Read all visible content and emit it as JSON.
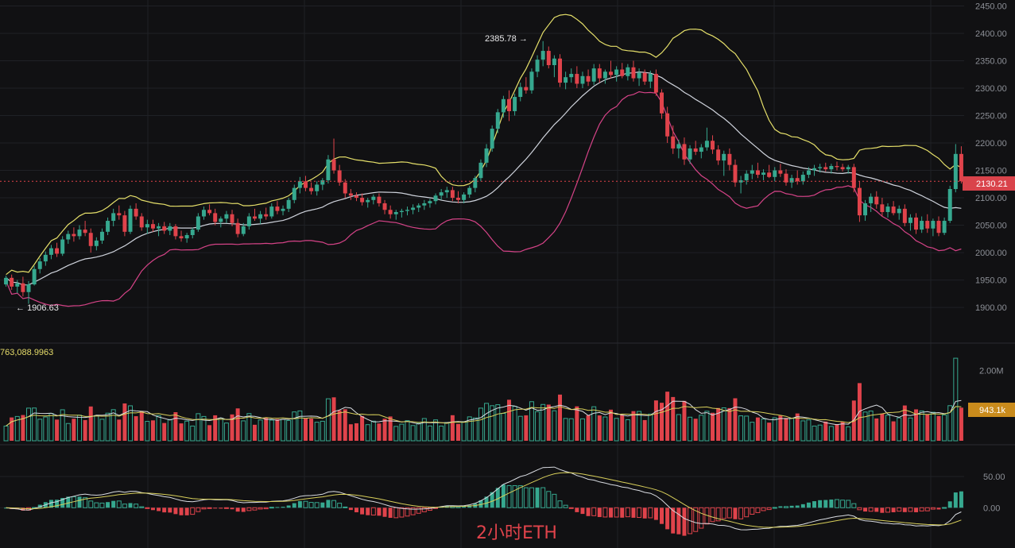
{
  "chart_data": {
    "type": "candlestick",
    "panels": {
      "price": {
        "y_ticks": [
          "2450.00",
          "2400.00",
          "2350.00",
          "2300.00",
          "2250.00",
          "2200.00",
          "2150.00",
          "2100.00",
          "2050.00",
          "2000.00",
          "1950.00",
          "1900.00"
        ],
        "ylim": [
          1890,
          2455
        ],
        "high_label": "2385.78",
        "low_label": "1906.63",
        "high_value": 2385.78,
        "low_value": 1906.63,
        "current_price": "2130.21",
        "candles_ohlc": [
          [
            1942,
            1958,
            1938,
            1954
          ],
          [
            1954,
            1960,
            1932,
            1938
          ],
          [
            1938,
            1950,
            1926,
            1944
          ],
          [
            1944,
            1956,
            1920,
            1928
          ],
          [
            1928,
            1948,
            1906.63,
            1942
          ],
          [
            1942,
            1976,
            1940,
            1970
          ],
          [
            1970,
            1990,
            1962,
            1984
          ],
          [
            1984,
            2002,
            1976,
            1996
          ],
          [
            1996,
            2014,
            1988,
            2008
          ],
          [
            2008,
            2018,
            1992,
            1998
          ],
          [
            1998,
            2030,
            1994,
            2024
          ],
          [
            2024,
            2040,
            2016,
            2034
          ],
          [
            2034,
            2046,
            2020,
            2030
          ],
          [
            2030,
            2050,
            2024,
            2042
          ],
          [
            2042,
            2058,
            2030,
            2036
          ],
          [
            2036,
            2044,
            2000,
            2012
          ],
          [
            2012,
            2028,
            2004,
            2022
          ],
          [
            2022,
            2044,
            2016,
            2038
          ],
          [
            2038,
            2064,
            2032,
            2058
          ],
          [
            2058,
            2080,
            2048,
            2072
          ],
          [
            2072,
            2086,
            2060,
            2068
          ],
          [
            2068,
            2076,
            2030,
            2038
          ],
          [
            2038,
            2086,
            2034,
            2080
          ],
          [
            2080,
            2090,
            2060,
            2066
          ],
          [
            2066,
            2072,
            2040,
            2046
          ],
          [
            2046,
            2060,
            2034,
            2052
          ],
          [
            2052,
            2060,
            2038,
            2044
          ],
          [
            2044,
            2054,
            2030,
            2048
          ],
          [
            2048,
            2056,
            2034,
            2040
          ],
          [
            2040,
            2054,
            2032,
            2048
          ],
          [
            2048,
            2052,
            2024,
            2030
          ],
          [
            2030,
            2040,
            2020,
            2026
          ],
          [
            2026,
            2036,
            2018,
            2032
          ],
          [
            2032,
            2046,
            2026,
            2042
          ],
          [
            2042,
            2072,
            2038,
            2066
          ],
          [
            2066,
            2084,
            2060,
            2078
          ],
          [
            2078,
            2088,
            2068,
            2072
          ],
          [
            2072,
            2080,
            2050,
            2056
          ],
          [
            2056,
            2066,
            2046,
            2062
          ],
          [
            2062,
            2076,
            2054,
            2070
          ],
          [
            2070,
            2078,
            2048,
            2054
          ],
          [
            2054,
            2062,
            2028,
            2034
          ],
          [
            2034,
            2054,
            2030,
            2048
          ],
          [
            2048,
            2072,
            2042,
            2066
          ],
          [
            2066,
            2080,
            2058,
            2062
          ],
          [
            2062,
            2076,
            2052,
            2070
          ],
          [
            2070,
            2082,
            2060,
            2066
          ],
          [
            2066,
            2090,
            2062,
            2084
          ],
          [
            2084,
            2094,
            2070,
            2076
          ],
          [
            2076,
            2086,
            2068,
            2080
          ],
          [
            2080,
            2100,
            2074,
            2096
          ],
          [
            2096,
            2124,
            2090,
            2118
          ],
          [
            2118,
            2138,
            2108,
            2130
          ],
          [
            2130,
            2140,
            2112,
            2118
          ],
          [
            2118,
            2128,
            2106,
            2112
          ],
          [
            2112,
            2130,
            2104,
            2124
          ],
          [
            2124,
            2136,
            2114,
            2132
          ],
          [
            2132,
            2178,
            2126,
            2170
          ],
          [
            2170,
            2208,
            2144,
            2150
          ],
          [
            2150,
            2160,
            2122,
            2128
          ],
          [
            2128,
            2134,
            2100,
            2108
          ],
          [
            2108,
            2116,
            2096,
            2104
          ],
          [
            2104,
            2110,
            2094,
            2100
          ],
          [
            2100,
            2108,
            2086,
            2092
          ],
          [
            2092,
            2100,
            2082,
            2096
          ],
          [
            2096,
            2106,
            2088,
            2102
          ],
          [
            2102,
            2108,
            2084,
            2090
          ],
          [
            2090,
            2096,
            2070,
            2078
          ],
          [
            2078,
            2086,
            2062,
            2070
          ],
          [
            2070,
            2078,
            2060,
            2074
          ],
          [
            2074,
            2080,
            2064,
            2076
          ],
          [
            2076,
            2084,
            2068,
            2078
          ],
          [
            2078,
            2088,
            2070,
            2082
          ],
          [
            2082,
            2090,
            2074,
            2086
          ],
          [
            2086,
            2096,
            2078,
            2090
          ],
          [
            2090,
            2098,
            2082,
            2094
          ],
          [
            2094,
            2108,
            2088,
            2104
          ],
          [
            2104,
            2116,
            2096,
            2110
          ],
          [
            2110,
            2120,
            2100,
            2114
          ],
          [
            2114,
            2120,
            2094,
            2100
          ],
          [
            2100,
            2112,
            2090,
            2096
          ],
          [
            2096,
            2110,
            2090,
            2106
          ],
          [
            2106,
            2122,
            2100,
            2118
          ],
          [
            2118,
            2140,
            2110,
            2136
          ],
          [
            2136,
            2170,
            2130,
            2164
          ],
          [
            2164,
            2198,
            2156,
            2190
          ],
          [
            2190,
            2232,
            2184,
            2226
          ],
          [
            2226,
            2262,
            2218,
            2256
          ],
          [
            2256,
            2286,
            2246,
            2280
          ],
          [
            2280,
            2296,
            2240,
            2258
          ],
          [
            2258,
            2290,
            2250,
            2284
          ],
          [
            2284,
            2310,
            2276,
            2302
          ],
          [
            2302,
            2320,
            2290,
            2296
          ],
          [
            2296,
            2336,
            2290,
            2330
          ],
          [
            2330,
            2360,
            2320,
            2352
          ],
          [
            2352,
            2385.78,
            2340,
            2368
          ],
          [
            2368,
            2376,
            2336,
            2342
          ],
          [
            2342,
            2360,
            2320,
            2354
          ],
          [
            2354,
            2362,
            2302,
            2310
          ],
          [
            2310,
            2330,
            2298,
            2320
          ],
          [
            2320,
            2336,
            2310,
            2326
          ],
          [
            2326,
            2340,
            2300,
            2308
          ],
          [
            2308,
            2330,
            2300,
            2322
          ],
          [
            2322,
            2334,
            2304,
            2312
          ],
          [
            2312,
            2344,
            2306,
            2336
          ],
          [
            2336,
            2344,
            2310,
            2318
          ],
          [
            2318,
            2334,
            2308,
            2330
          ],
          [
            2330,
            2350,
            2318,
            2324
          ],
          [
            2324,
            2340,
            2312,
            2334
          ],
          [
            2334,
            2346,
            2318,
            2322
          ],
          [
            2322,
            2344,
            2314,
            2338
          ],
          [
            2338,
            2350,
            2312,
            2318
          ],
          [
            2318,
            2336,
            2304,
            2328
          ],
          [
            2328,
            2334,
            2306,
            2312
          ],
          [
            2312,
            2332,
            2300,
            2326
          ],
          [
            2326,
            2334,
            2286,
            2292
          ],
          [
            2292,
            2298,
            2244,
            2254
          ],
          [
            2254,
            2266,
            2200,
            2212
          ],
          [
            2212,
            2232,
            2180,
            2190
          ],
          [
            2190,
            2206,
            2172,
            2198
          ],
          [
            2198,
            2210,
            2160,
            2170
          ],
          [
            2170,
            2196,
            2162,
            2190
          ],
          [
            2190,
            2204,
            2178,
            2184
          ],
          [
            2184,
            2198,
            2172,
            2192
          ],
          [
            2192,
            2228,
            2186,
            2204
          ],
          [
            2204,
            2214,
            2180,
            2188
          ],
          [
            2188,
            2196,
            2160,
            2168
          ],
          [
            2168,
            2186,
            2140,
            2180
          ],
          [
            2180,
            2190,
            2150,
            2160
          ],
          [
            2160,
            2170,
            2120,
            2128
          ],
          [
            2128,
            2140,
            2108,
            2132
          ],
          [
            2132,
            2150,
            2124,
            2144
          ],
          [
            2144,
            2160,
            2134,
            2150
          ],
          [
            2150,
            2164,
            2136,
            2142
          ],
          [
            2142,
            2152,
            2132,
            2146
          ],
          [
            2146,
            2160,
            2136,
            2138
          ],
          [
            2138,
            2156,
            2130,
            2150
          ],
          [
            2150,
            2162,
            2138,
            2144
          ],
          [
            2144,
            2152,
            2122,
            2128
          ],
          [
            2128,
            2142,
            2118,
            2136
          ],
          [
            2136,
            2150,
            2124,
            2130
          ],
          [
            2130,
            2148,
            2124,
            2142
          ],
          [
            2142,
            2156,
            2136,
            2150
          ],
          [
            2150,
            2160,
            2140,
            2154
          ],
          [
            2154,
            2162,
            2146,
            2156
          ],
          [
            2156,
            2164,
            2148,
            2152
          ],
          [
            2152,
            2162,
            2144,
            2158
          ],
          [
            2158,
            2166,
            2150,
            2156
          ],
          [
            2156,
            2162,
            2148,
            2152
          ],
          [
            2152,
            2160,
            2144,
            2156
          ],
          [
            2156,
            2162,
            2110,
            2118
          ],
          [
            2118,
            2130,
            2056,
            2068
          ],
          [
            2068,
            2096,
            2058,
            2090
          ],
          [
            2090,
            2108,
            2074,
            2102
          ],
          [
            2102,
            2112,
            2080,
            2088
          ],
          [
            2088,
            2100,
            2066,
            2074
          ],
          [
            2074,
            2090,
            2064,
            2084
          ],
          [
            2084,
            2094,
            2068,
            2072
          ],
          [
            2072,
            2086,
            2060,
            2080
          ],
          [
            2080,
            2088,
            2048,
            2054
          ],
          [
            2054,
            2070,
            2040,
            2064
          ],
          [
            2064,
            2072,
            2034,
            2042
          ],
          [
            2042,
            2066,
            2036,
            2058
          ],
          [
            2058,
            2070,
            2036,
            2044
          ],
          [
            2044,
            2062,
            2030,
            2058
          ],
          [
            2058,
            2066,
            2030,
            2036
          ],
          [
            2036,
            2064,
            2032,
            2058
          ],
          [
            2058,
            2122,
            2054,
            2116
          ],
          [
            2116,
            2198,
            2110,
            2180
          ],
          [
            2180,
            2194,
            2126,
            2130.21
          ]
        ]
      },
      "volume": {
        "label": "763,088.9963",
        "y_ticks": [
          "2.00M"
        ],
        "ylim": [
          0,
          2600000
        ],
        "current_value_label": "943.1k"
      },
      "macd": {
        "y_ticks": [
          "50.00",
          "0.00"
        ],
        "ylim": [
          -62,
          78
        ]
      }
    },
    "watermark": "2小时ETH"
  },
  "colors": {
    "background": "#111113",
    "grid": "#1f2126",
    "up": "#36a88f",
    "down": "#e0434b",
    "boll_upper": "#e6e06a",
    "boll_mid": "#cfd3dc",
    "boll_lower": "#d54387",
    "ma_white": "#d9dce2",
    "ma_yellow": "#d8cf5a",
    "badge_price": "#d9434b",
    "badge_volume": "#c98b1c"
  }
}
